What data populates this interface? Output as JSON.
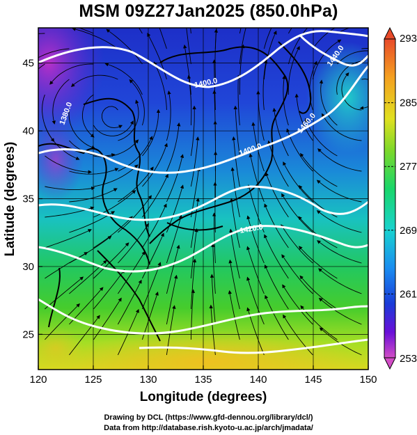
{
  "title": "MSM 09Z27Jan2025 (850.0hPa)",
  "map": {
    "lon_range": [
      120,
      150
    ],
    "lat_range": [
      22.4,
      47.6
    ],
    "lon_ticks": [
      "120",
      "125",
      "130",
      "135",
      "140",
      "145",
      "150"
    ],
    "lat_ticks": [
      "25",
      "30",
      "35",
      "40",
      "45"
    ],
    "xlabel": "Longitude (degrees)",
    "ylabel": "Latitude  (degrees)",
    "field": "temperature",
    "streamlines": true,
    "coastlines": true,
    "grid": true
  },
  "contour_labels": [
    "1400.0",
    "1400.0",
    "1380.0",
    "1420.0",
    "1440.0",
    "1460.0"
  ],
  "colorbar": {
    "min": 253,
    "max": 293,
    "tick_labels": [
      "293",
      "285",
      "277",
      "269",
      "261",
      "253"
    ],
    "colors": [
      "#d24dc6",
      "#6a0fd8",
      "#1a3cd8",
      "#1a8cf0",
      "#19d2d0",
      "#19d66a",
      "#27c83a",
      "#9ce026",
      "#e8e820",
      "#f4a020",
      "#f05030",
      "#e84a2a"
    ]
  },
  "credits": {
    "line1": "Drawing by DCL (https://www.gfd-dennou.org/library/dcl/)",
    "line2": "Data from http://database.rish.kyoto-u.ac.jp/arch/jmadata/"
  }
}
